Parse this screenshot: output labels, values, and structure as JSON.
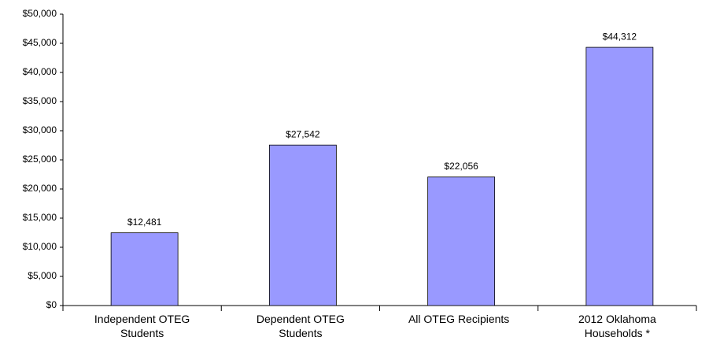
{
  "chart_data": {
    "type": "bar",
    "categories": [
      "Independent OTEG Students",
      "Dependent OTEG Students",
      "All OTEG Recipients",
      "2012 Oklahoma Households *"
    ],
    "values": [
      12481,
      27542,
      22056,
      44312
    ],
    "value_labels": [
      "$12,481",
      "$27,542",
      "$22,056",
      "$44,312"
    ],
    "color": "#9999ff",
    "ylim": [
      0,
      50000
    ],
    "yticks": [
      {
        "value": 0,
        "label": "$0"
      },
      {
        "value": 5000,
        "label": "$5,000"
      },
      {
        "value": 10000,
        "label": "$10,000"
      },
      {
        "value": 15000,
        "label": "$15,000"
      },
      {
        "value": 20000,
        "label": "$20,000"
      },
      {
        "value": 25000,
        "label": "$25,000"
      },
      {
        "value": 30000,
        "label": "$30,000"
      },
      {
        "value": 35000,
        "label": "$35,000"
      },
      {
        "value": 40000,
        "label": "$40,000"
      },
      {
        "value": 45000,
        "label": "$45,000"
      },
      {
        "value": 50000,
        "label": "$50,000"
      }
    ],
    "grid": false
  }
}
